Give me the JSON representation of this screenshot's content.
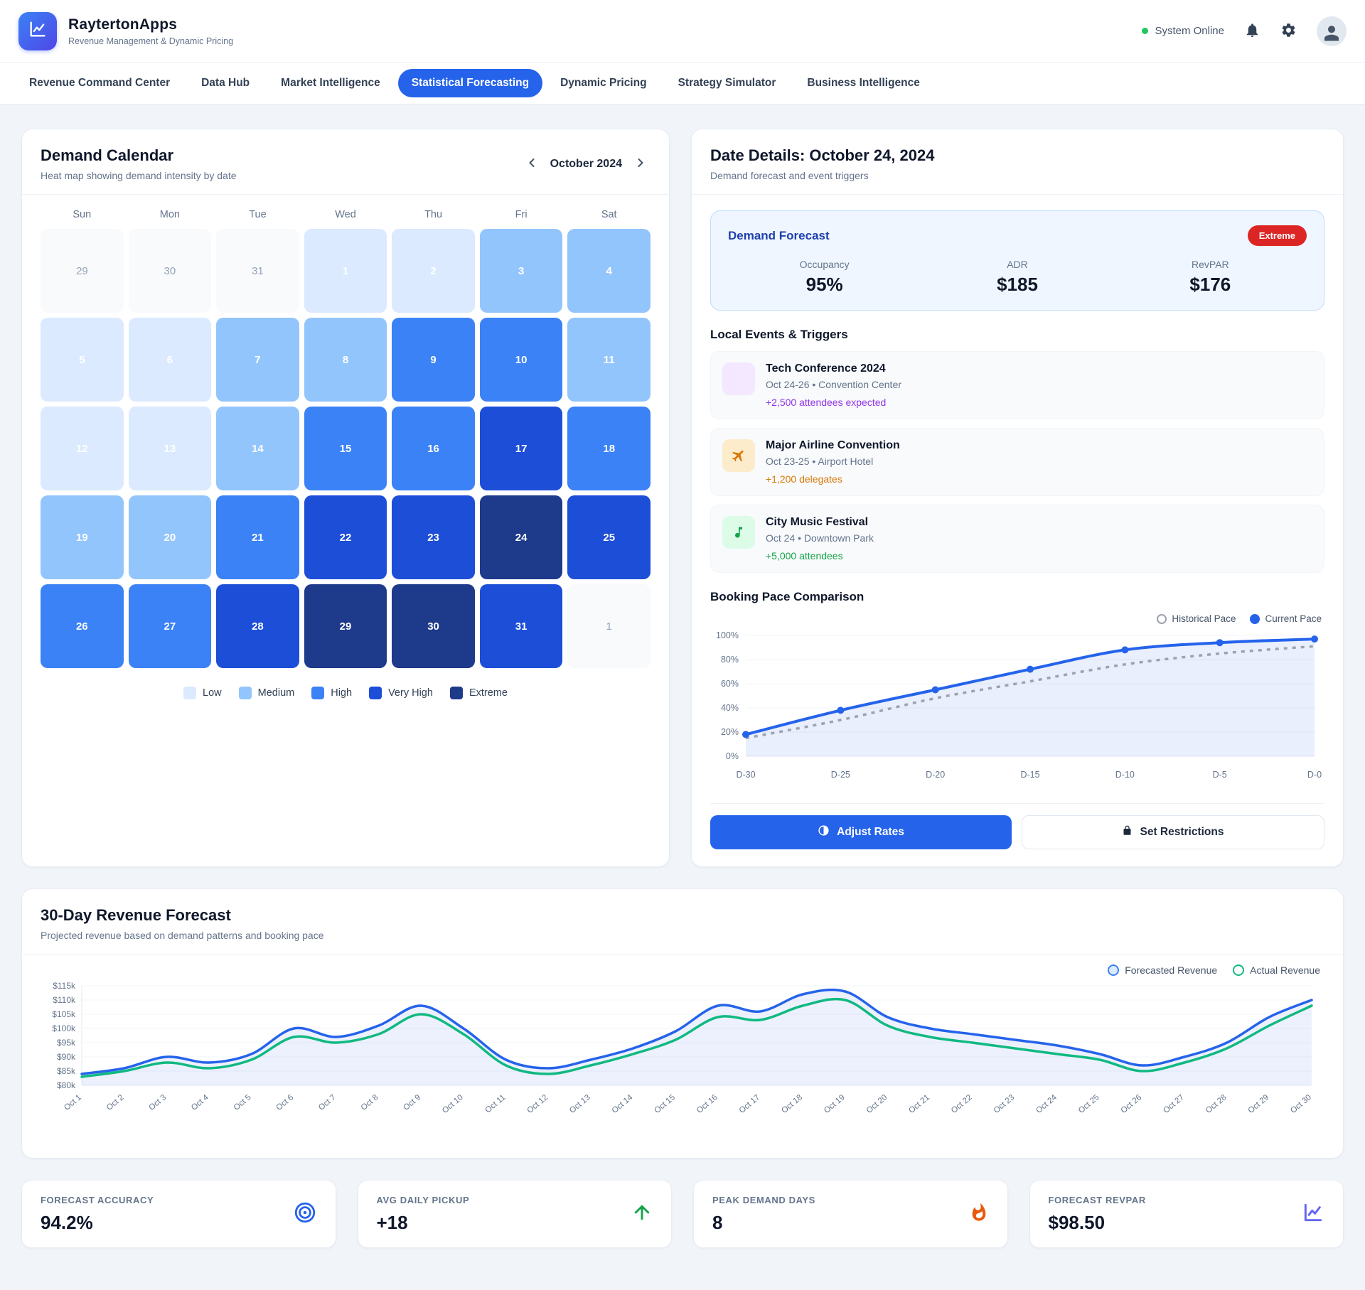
{
  "accent_color": "#2563eb",
  "header": {
    "app_name": "RaytertonApps",
    "app_subtitle": "Revenue Management & Dynamic Pricing",
    "status": "System Online",
    "status_color": "#22c55e"
  },
  "nav": {
    "tabs": [
      {
        "label": "Revenue Command Center",
        "active": false
      },
      {
        "label": "Data Hub",
        "active": false
      },
      {
        "label": "Market Intelligence",
        "active": false
      },
      {
        "label": "Statistical Forecasting",
        "active": true
      },
      {
        "label": "Dynamic Pricing",
        "active": false
      },
      {
        "label": "Strategy Simulator",
        "active": false
      },
      {
        "label": "Business Intelligence",
        "active": false
      }
    ]
  },
  "calendar": {
    "title": "Demand Calendar",
    "subtitle": "Heat map showing demand intensity by date",
    "month_label": "October 2024",
    "day_headers": [
      "Sun",
      "Mon",
      "Tue",
      "Wed",
      "Thu",
      "Fri",
      "Sat"
    ],
    "level_colors": {
      "out": "#f8fafc",
      "low": "#dbeafe",
      "medium": "#93c5fd",
      "high": "#3b82f6",
      "very_high": "#1d4ed8",
      "extreme": "#1e3a8a"
    },
    "cells": [
      {
        "day": "29",
        "level": "out"
      },
      {
        "day": "30",
        "level": "out"
      },
      {
        "day": "31",
        "level": "out"
      },
      {
        "day": "1",
        "level": "low"
      },
      {
        "day": "2",
        "level": "low"
      },
      {
        "day": "3",
        "level": "medium"
      },
      {
        "day": "4",
        "level": "medium"
      },
      {
        "day": "5",
        "level": "low"
      },
      {
        "day": "6",
        "level": "low"
      },
      {
        "day": "7",
        "level": "medium"
      },
      {
        "day": "8",
        "level": "medium"
      },
      {
        "day": "9",
        "level": "high"
      },
      {
        "day": "10",
        "level": "high"
      },
      {
        "day": "11",
        "level": "medium"
      },
      {
        "day": "12",
        "level": "low"
      },
      {
        "day": "13",
        "level": "low"
      },
      {
        "day": "14",
        "level": "medium"
      },
      {
        "day": "15",
        "level": "high"
      },
      {
        "day": "16",
        "level": "high"
      },
      {
        "day": "17",
        "level": "very_high"
      },
      {
        "day": "18",
        "level": "high"
      },
      {
        "day": "19",
        "level": "medium"
      },
      {
        "day": "20",
        "level": "medium"
      },
      {
        "day": "21",
        "level": "high"
      },
      {
        "day": "22",
        "level": "very_high"
      },
      {
        "day": "23",
        "level": "very_high"
      },
      {
        "day": "24",
        "level": "extreme"
      },
      {
        "day": "25",
        "level": "very_high"
      },
      {
        "day": "26",
        "level": "high"
      },
      {
        "day": "27",
        "level": "high"
      },
      {
        "day": "28",
        "level": "very_high"
      },
      {
        "day": "29",
        "level": "extreme"
      },
      {
        "day": "30",
        "level": "extreme"
      },
      {
        "day": "31",
        "level": "very_high"
      },
      {
        "day": "1",
        "level": "out"
      }
    ],
    "legend": [
      {
        "label": "Low",
        "color": "#dbeafe"
      },
      {
        "label": "Medium",
        "color": "#93c5fd"
      },
      {
        "label": "High",
        "color": "#3b82f6"
      },
      {
        "label": "Very High",
        "color": "#1d4ed8"
      },
      {
        "label": "Extreme",
        "color": "#1e3a8a"
      }
    ]
  },
  "details": {
    "title": "Date Details: October 24, 2024",
    "subtitle": "Demand forecast and event triggers",
    "forecast": {
      "title": "Demand Forecast",
      "badge": "Extreme",
      "badge_color": "#dc2626",
      "stats": [
        {
          "label": "Occupancy",
          "value": "95%"
        },
        {
          "label": "ADR",
          "value": "$185"
        },
        {
          "label": "RevPAR",
          "value": "$176"
        }
      ]
    },
    "events_title": "Local Events & Triggers",
    "events": [
      {
        "name": "Tech Conference 2024",
        "meta": "Oct 24-26 • Convention Center",
        "highlight": "+2,500 attendees expected",
        "highlight_color": "#9333ea",
        "icon": "blank",
        "icon_bg": "#f3e8ff",
        "icon_color": "#9333ea"
      },
      {
        "name": "Major Airline Convention",
        "meta": "Oct 23-25 • Airport Hotel",
        "highlight": "+1,200 delegates",
        "highlight_color": "#d97706",
        "icon": "plane-icon",
        "icon_bg": "#fdeccc",
        "icon_color": "#d97706"
      },
      {
        "name": "City Music Festival",
        "meta": "Oct 24 • Downtown Park",
        "highlight": "+5,000 attendees",
        "highlight_color": "#16a34a",
        "icon": "music-icon",
        "icon_bg": "#dcfce7",
        "icon_color": "#16a34a"
      }
    ],
    "pace_title": "Booking Pace Comparison",
    "actions": {
      "adjust": "Adjust Rates",
      "restrict": "Set Restrictions"
    }
  },
  "revenue_panel": {
    "title": "30-Day Revenue Forecast",
    "subtitle": "Projected revenue based on demand patterns and booking pace"
  },
  "footer": {
    "cards": [
      {
        "label": "FORECAST ACCURACY",
        "value": "94.2%",
        "icon": "target-icon",
        "icon_color": "#2563eb"
      },
      {
        "label": "AVG DAILY PICKUP",
        "value": "+18",
        "icon": "arrow-up-icon",
        "icon_color": "#16a34a"
      },
      {
        "label": "PEAK DEMAND DAYS",
        "value": "8",
        "icon": "flame-icon",
        "icon_color": "#ea580c"
      },
      {
        "label": "FORECAST REVPAR",
        "value": "$98.50",
        "icon": "chart-icon",
        "icon_color": "#6366f1"
      }
    ]
  },
  "chart_data": [
    {
      "id": "booking_pace",
      "type": "line",
      "title": "Booking Pace Comparison",
      "x": [
        "D-30",
        "D-25",
        "D-20",
        "D-15",
        "D-10",
        "D-5",
        "D-0"
      ],
      "series": [
        {
          "name": "Historical Pace",
          "color": "#9ca3af",
          "style": "dashed",
          "values": [
            15,
            30,
            48,
            62,
            76,
            85,
            91
          ]
        },
        {
          "name": "Current Pace",
          "color": "#2563eb",
          "style": "solid",
          "values": [
            18,
            38,
            55,
            72,
            88,
            94,
            97
          ]
        }
      ],
      "ylim": [
        0,
        100
      ],
      "yticks": [
        "0%",
        "20%",
        "40%",
        "60%",
        "80%",
        "100%"
      ],
      "legend_position": "top-right",
      "grid": true
    },
    {
      "id": "revenue_forecast",
      "type": "area",
      "title": "30-Day Revenue Forecast",
      "x": [
        "Oct 1",
        "Oct 2",
        "Oct 3",
        "Oct 4",
        "Oct 5",
        "Oct 6",
        "Oct 7",
        "Oct 8",
        "Oct 9",
        "Oct 10",
        "Oct 11",
        "Oct 12",
        "Oct 13",
        "Oct 14",
        "Oct 15",
        "Oct 16",
        "Oct 17",
        "Oct 18",
        "Oct 19",
        "Oct 20",
        "Oct 21",
        "Oct 22",
        "Oct 23",
        "Oct 24",
        "Oct 25",
        "Oct 26",
        "Oct 27",
        "Oct 28",
        "Oct 29",
        "Oct 30"
      ],
      "series": [
        {
          "name": "Forecasted Revenue",
          "color": "#2563eb",
          "values": [
            84,
            86,
            90,
            88,
            91,
            100,
            97,
            101,
            108,
            100,
            89,
            86,
            89,
            93,
            99,
            108,
            106,
            112,
            113,
            104,
            100,
            98,
            96,
            94,
            91,
            87,
            90,
            95,
            104,
            110
          ]
        },
        {
          "name": "Actual Revenue",
          "color": "#10b981",
          "values": [
            83,
            85,
            88,
            86,
            89,
            97,
            95,
            98,
            105,
            98,
            87,
            84,
            87,
            91,
            96,
            104,
            103,
            108,
            110,
            101,
            97,
            95,
            93,
            91,
            89,
            85,
            88,
            93,
            101,
            108
          ]
        }
      ],
      "ylim": [
        80,
        115
      ],
      "yticks": [
        "$80k",
        "$85k",
        "$90k",
        "$95k",
        "$100k",
        "$105k",
        "$110k",
        "$115k"
      ],
      "legend_position": "top-right",
      "grid": true
    }
  ]
}
